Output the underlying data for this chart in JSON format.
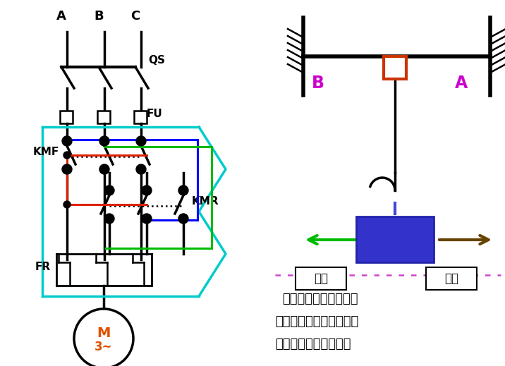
{
  "bg_color": "#ffffff",
  "left_bg": "#ffffff",
  "right_bg": "#ffffff",
  "cyan_color": "#00cccc",
  "blue_color": "#0000ff",
  "green_color": "#00bb00",
  "red_color": "#dd2200",
  "orange_color": "#e05000",
  "magenta_color": "#cc00cc",
  "brown_color": "#664400",
  "dotted_line_color": "#cc44cc",
  "bottom_text": [
    "行程控制实质为电机的",
    "正反转控制，只是在行程",
    "的终端要加限位开关。"
  ]
}
